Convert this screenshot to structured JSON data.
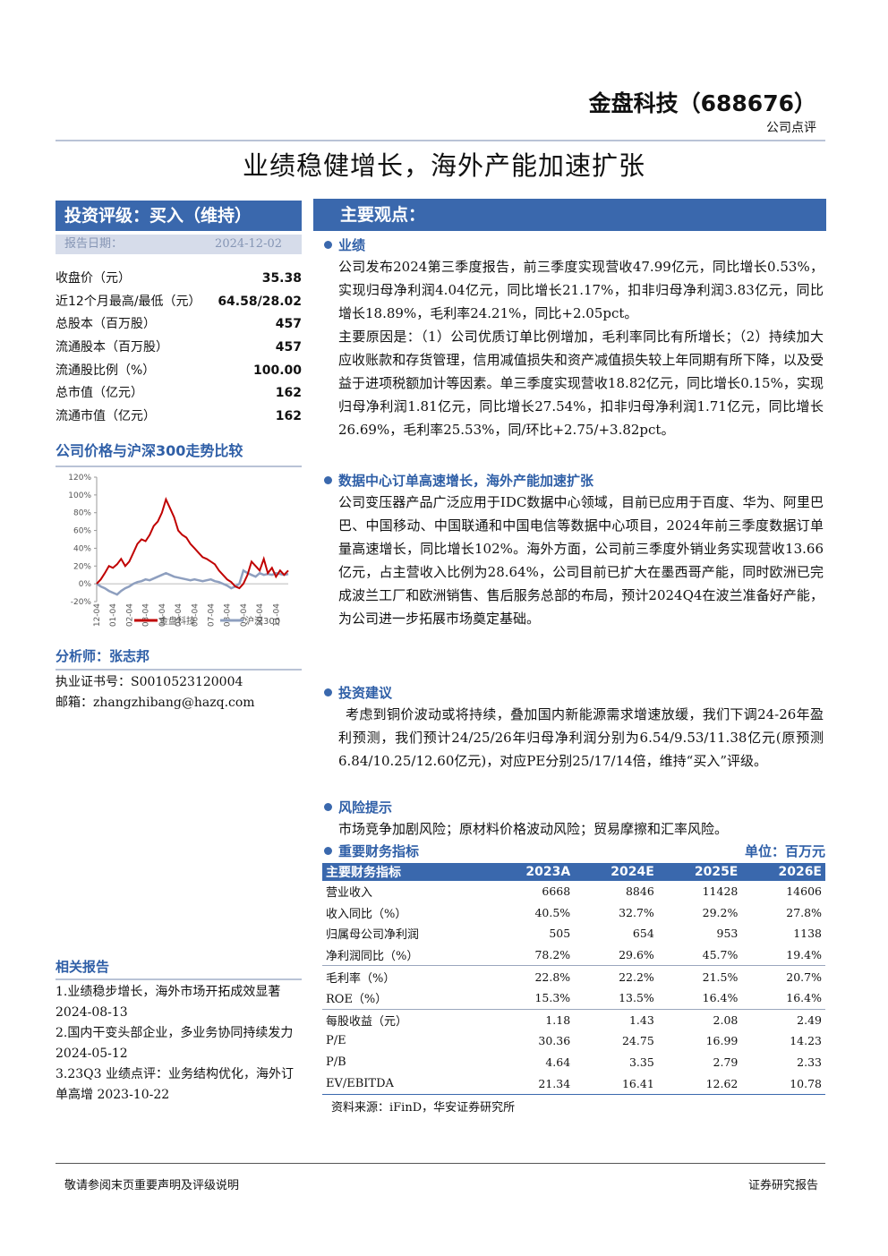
{
  "header": {
    "company": "金盘科技（688676）",
    "report_type": "公司点评"
  },
  "title": "业绩稳健增长，海外产能加速扩张",
  "rating": {
    "label": "投资评级：买入（维持）",
    "date_label": "报告日期：",
    "date": "2024-12-02"
  },
  "stats": [
    [
      "收盘价（元）",
      35.38
    ],
    [
      "近12个月最高/最低（元）",
      "64.58/28.02"
    ],
    [
      "总股本（百万股）",
      457
    ],
    [
      "流通股本（百万股）",
      457
    ],
    [
      "流通股比例（%）",
      "100.00"
    ],
    [
      "总市值（亿元）",
      162
    ],
    [
      "流通市值（亿元）",
      162
    ]
  ],
  "chart_data": {
    "type": "line",
    "title": "公司价格与沪深300走势比较",
    "categories": [
      "12-04",
      null,
      null,
      null,
      "01-04",
      null,
      null,
      null,
      "02-04",
      null,
      null,
      null,
      "03-04",
      null,
      null,
      null,
      "04-04",
      null,
      null,
      null,
      "05-04",
      null,
      null,
      null,
      "06-04",
      null,
      null,
      null,
      "07-04",
      null,
      null,
      null,
      "08-04",
      null,
      null,
      null,
      "09-04",
      null,
      null,
      null,
      "10-04",
      null,
      null,
      null,
      "11-04",
      null,
      null,
      null
    ],
    "series": [
      {
        "name": "金盘科技",
        "color": "#c00000",
        "values": [
          0,
          5,
          12,
          20,
          18,
          22,
          28,
          20,
          25,
          35,
          45,
          50,
          48,
          55,
          65,
          70,
          80,
          95,
          85,
          75,
          60,
          55,
          52,
          45,
          40,
          35,
          30,
          28,
          25,
          22,
          15,
          10,
          5,
          2,
          -3,
          -5,
          0,
          10,
          25,
          20,
          15,
          28,
          12,
          18,
          8,
          15,
          10,
          15
        ]
      },
      {
        "name": "沪深300",
        "color": "#8e9fbf",
        "values": [
          0,
          -3,
          -5,
          -8,
          -10,
          -12,
          -8,
          -5,
          -3,
          0,
          2,
          3,
          5,
          4,
          6,
          8,
          10,
          12,
          10,
          8,
          7,
          6,
          5,
          4,
          5,
          4,
          3,
          4,
          5,
          3,
          2,
          0,
          -2,
          -5,
          -3,
          0,
          15,
          12,
          10,
          8,
          12,
          10,
          11,
          10,
          12,
          11,
          10,
          11
        ]
      }
    ],
    "ylim": [
      -20,
      120
    ],
    "yticks": [
      {
        "value": -20,
        "label": "-20%"
      },
      {
        "value": 0,
        "label": "0%"
      },
      {
        "value": 20,
        "label": "20%"
      },
      {
        "value": 40,
        "label": "40%"
      },
      {
        "value": 60,
        "label": "60%"
      },
      {
        "value": 80,
        "label": "80%"
      },
      {
        "value": 100,
        "label": "100%"
      },
      {
        "value": 120,
        "label": "120%"
      }
    ]
  },
  "analyst": {
    "name": "分析师：张志邦",
    "license": "执业证书号：S0010523120004",
    "email": "邮箱：zhangzhibang@hazq.com"
  },
  "related": {
    "title": "相关报告",
    "items": [
      "1.业绩稳步增长，海外市场开拓成效显著 2024-08-13",
      "2.国内干变头部企业，多业务协同持续发力 2024-05-12",
      "3.23Q3 业绩点评：业务结构优化，海外订单高增 2023-10-22"
    ]
  },
  "main": {
    "title": "主要观点：",
    "sections": [
      {
        "heading": "业绩",
        "paragraphs": [
          "公司发布2024第三季度报告，前三季度实现营收47.99亿元，同比增长0.53%，实现归母净利润4.04亿元，同比增长21.17%，扣非归母净利润3.83亿元，同比增长18.89%，毛利率24.21%，同比+2.05pct。",
          "主要原因是：（1）公司优质订单比例增加，毛利率同比有所增长；（2）持续加大应收账款和存货管理，信用减值损失和资产减值损失较上年同期有所下降，以及受益于进项税额加计等因素。单三季度实现营收18.82亿元，同比增长0.15%，实现归母净利润1.81亿元，同比增长27.54%，扣非归母净利润1.71亿元，同比增长26.69%，毛利率25.53%，同/环比+2.75/+3.82pct。"
        ]
      },
      {
        "heading": "数据中心订单高速增长，海外产能加速扩张",
        "paragraphs": [
          "公司变压器产品广泛应用于IDC数据中心领域，目前已应用于百度、华为、阿里巴巴、中国移动、中国联通和中国电信等数据中心项目，2024年前三季度数据订单量高速增长，同比增长102%。海外方面，公司前三季度外销业务实现营收13.66亿元，占主营收入比例为28.64%，公司目前已扩大在墨西哥产能，同时欧洲已完成波兰工厂和欧洲销售、售后服务总部的布局，预计2024Q4在波兰准备好产能，为公司进一步拓展市场奠定基础。"
        ]
      },
      {
        "heading": "投资建议",
        "paragraphs": [
          "考虑到铜价波动或将持续，叠加国内新能源需求增速放缓，我们下调24-26年盈利预测，我们预计24/25/26年归母净利润分别为6.54/9.53/11.38亿元(原预测6.84/10.25/12.60亿元)，对应PE分别25/17/14倍，维持“买入”评级。"
        ]
      },
      {
        "heading": "风险提示",
        "paragraphs": [
          "市场竞争加剧风险；原材料价格波动风险；贸易摩擦和汇率风险。"
        ]
      }
    ]
  },
  "financials": {
    "heading": "重要财务指标",
    "unit": "单位：百万元",
    "columns": [
      "主要财务指标",
      "2023A",
      "2024E",
      "2025E",
      "2026E"
    ],
    "rows": [
      [
        "营业收入",
        6668,
        8846,
        11428,
        14606
      ],
      [
        "收入同比（%）",
        "40.5%",
        "32.7%",
        "29.2%",
        "27.8%"
      ],
      [
        "归属母公司净利润",
        505,
        654,
        953,
        1138
      ],
      [
        "净利润同比（%）",
        "78.2%",
        "29.6%",
        "45.7%",
        "19.4%"
      ],
      [
        "毛利率（%）",
        "22.8%",
        "22.2%",
        "21.5%",
        "20.7%"
      ],
      [
        "ROE（%）",
        "15.3%",
        "13.5%",
        "16.4%",
        "16.4%"
      ],
      [
        "每股收益（元）",
        1.18,
        1.43,
        2.08,
        2.49
      ],
      [
        "P/E",
        30.36,
        24.75,
        16.99,
        14.23
      ],
      [
        "P/B",
        4.64,
        3.35,
        2.79,
        2.33
      ],
      [
        "EV/EBITDA",
        21.34,
        16.41,
        12.62,
        10.78
      ]
    ],
    "source": "资料来源：iFinD，华安证券研究所"
  },
  "footer": {
    "disclaimer": "敬请参阅末页重要声明及评级说明",
    "label": "证券研究报告"
  }
}
